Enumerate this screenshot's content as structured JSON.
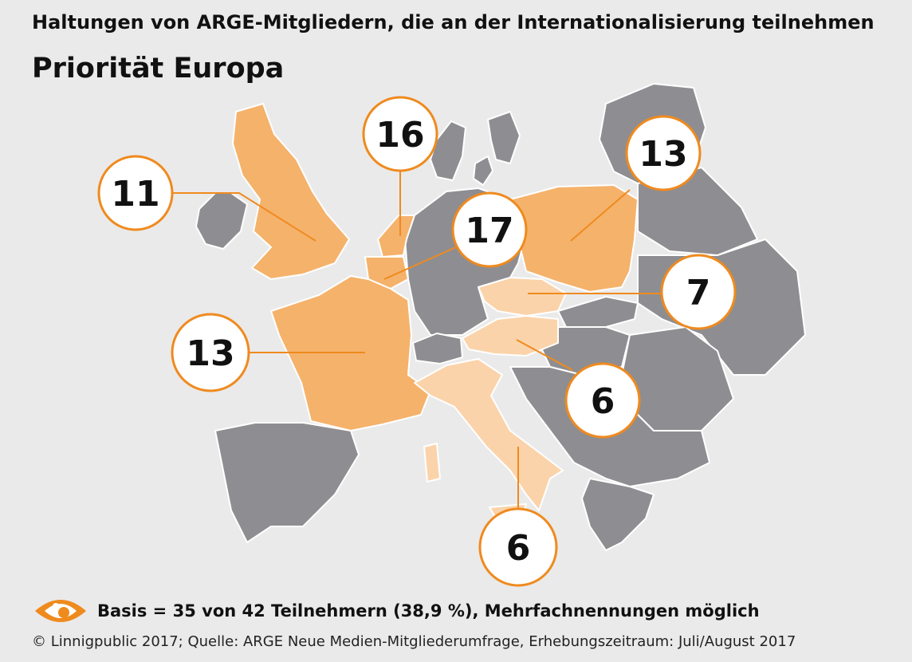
{
  "header": {
    "title": "Haltungen von ARGE-Mitgliedern, die an der Internationalisierung teilnehmen",
    "subtitle": "Priorität Europa"
  },
  "colors": {
    "background": "#eaeaea",
    "other_countries": "#8e8e92",
    "high_priority": "#f5b26b",
    "low_priority": "#fbd3aa",
    "accent": "#ef8a1e",
    "borders": "#ffffff"
  },
  "map": {
    "highlighted_regions": [
      {
        "region": "Ireland",
        "value": "11"
      },
      {
        "region": "Netherlands",
        "value": "16"
      },
      {
        "region": "Poland",
        "value": "13"
      },
      {
        "region": "Belgium",
        "value": "17"
      },
      {
        "region": "Czechia",
        "value": "7"
      },
      {
        "region": "France",
        "value": "13"
      },
      {
        "region": "Austria",
        "value": "6"
      },
      {
        "region": "Italy",
        "value": "6"
      }
    ]
  },
  "footer": {
    "basis": "Basis = 35 von 42 Teilnehmern (38,9 %), Mehrfachnennungen möglich",
    "credit": "© Linnigpublic 2017; Quelle: ARGE Neue Medien-Mitgliederumfrage, Erhebungszeitraum: Juli/August 2017",
    "logo_icon": "eye-logo-icon"
  }
}
